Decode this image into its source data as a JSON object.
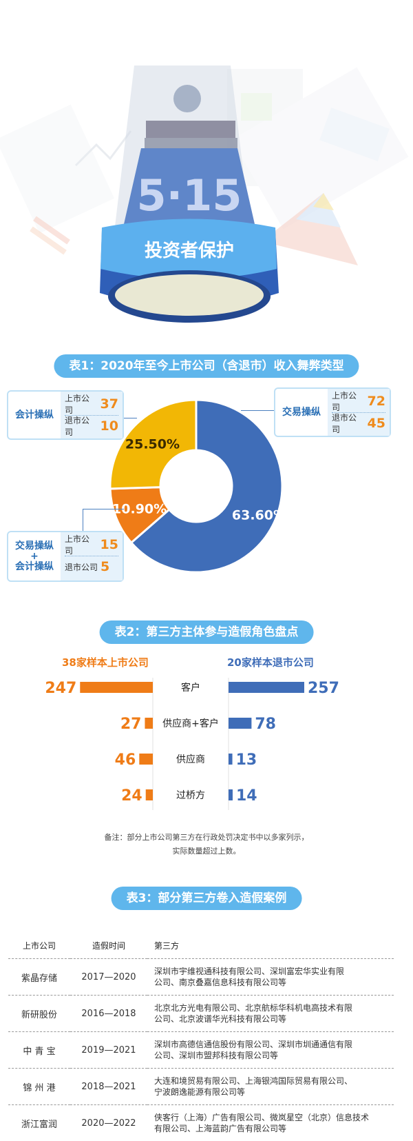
{
  "hero": {
    "badge_number": "5·15",
    "badge_text": "投资者保护"
  },
  "table1": {
    "title": "表1：2020年至今上市公司（含退市）收入舞弊类型",
    "groups": [
      {
        "name": "会计操纵",
        "listed_label": "上市公司",
        "listed": "37",
        "delisted_label": "退市公司",
        "delisted": "10"
      },
      {
        "name": "交易操纵",
        "listed_label": "上市公司",
        "listed": "72",
        "delisted_label": "退市公司",
        "delisted": "45"
      },
      {
        "name": "交易操纵+会计操纵",
        "name_line1": "交易操纵",
        "name_plus": "+",
        "name_line2": "会计操纵",
        "listed_label": "上市公司",
        "listed": "15",
        "delisted_label": "退市公司",
        "delisted": "5"
      }
    ]
  },
  "table2": {
    "title": "表2：第三方主体参与造假角色盘点",
    "left_title": "38家样本上市公司",
    "right_title": "20家样本退市公司",
    "note_line1": "备注：部分上市公司第三方在行政处罚决定书中以多家列示，",
    "note_line2": "实际数量超过上数。"
  },
  "table3": {
    "title": "表3：部分第三方卷入造假案例",
    "headers": [
      "上市公司",
      "造假时间",
      "第三方"
    ],
    "rows": [
      {
        "company": "紫晶存储",
        "period": "2017—2020",
        "parties_1": "深圳市宇维视通科技有限公司、深圳富宏华实业有限",
        "parties_2": "公司、南京叠嘉信息科技有限公司等"
      },
      {
        "company": "新研股份",
        "period": "2016—2018",
        "parties_1": "北京北方光电有限公司、北京航标华科机电高技术有限",
        "parties_2": "公司、北京波谱华光科技有限公司等"
      },
      {
        "company": "中 青 宝",
        "period": "2019—2021",
        "parties_1": "深圳市高德信通信股份有限公司、深圳市圳通通信有限",
        "parties_2": "公司、深圳市盟邦科技有限公司等"
      },
      {
        "company": "锦 州 港",
        "period": "2018—2021",
        "parties_1": "大连和境贸易有限公司、上海银鸿国际贸易有限公司、",
        "parties_2": "宁波朗逸能源有限公司等"
      },
      {
        "company": "浙江富润",
        "period": "2020—2022",
        "parties_1": "侠客行（上海）广告有限公司、微岚星空（北京）信息技术",
        "parties_2": "有限公司、上海蓝韵广告有限公司等"
      }
    ]
  },
  "chart_data": [
    {
      "type": "pie",
      "title": "表1：2020年至今上市公司（含退市）收入舞弊类型",
      "categories": [
        "交易操纵",
        "交易操纵+会计操纵",
        "会计操纵"
      ],
      "values": [
        63.6,
        10.9,
        25.5
      ],
      "labels": [
        "63.60%",
        "10.90%",
        "25.50%"
      ],
      "colors": [
        "#3f6db8",
        "#ef7c17",
        "#f2b705"
      ],
      "donut": true
    },
    {
      "type": "bar",
      "orientation": "horizontal-butterfly",
      "title": "表2：第三方主体参与造假角色盘点",
      "categories": [
        "客户",
        "供应商+客户",
        "供应商",
        "过桥方"
      ],
      "series": [
        {
          "name": "38家样本上市公司",
          "values": [
            247,
            27,
            46,
            24
          ],
          "color": "#ef7c17"
        },
        {
          "name": "20家样本退市公司",
          "values": [
            257,
            78,
            13,
            14
          ],
          "color": "#3f6db8"
        }
      ]
    }
  ]
}
